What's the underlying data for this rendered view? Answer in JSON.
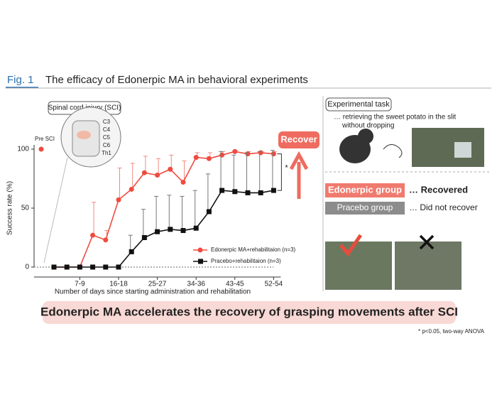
{
  "figure": {
    "label": "Fig. 1",
    "title": "The efficacy of Edonerpic MA in behavioral experiments",
    "sci_label": "Spinal cord injury (SCI)",
    "vertebrae": [
      "C3",
      "C4",
      "C5",
      "C6",
      "Th1"
    ],
    "recover": "Recover",
    "task_title": "Experimental task",
    "task_text": [
      "… retrieving the sweet potato in the slit",
      "without dropping"
    ],
    "edonerpic_group": "Edonerpic group",
    "edonerpic_result": "… Recovered",
    "placebo_group": "Pracebo group",
    "placebo_result": "… Did not recover",
    "banner": "Edonerpic MA accelerates the recovery of grasping movements after SCI",
    "footnote": "* p<0.05, two-way ANOVA"
  },
  "chart_data": {
    "type": "line",
    "y_label": "Success rate (%)",
    "x_label": "Number of days since starting administration and rehabilitation",
    "pre_label": "Pre SCI",
    "pre_value": 100,
    "significance": "*",
    "categories": [
      null,
      null,
      "7-9",
      null,
      null,
      "16-18",
      null,
      null,
      "25-27",
      null,
      null,
      "34-36",
      null,
      null,
      "43-45",
      null,
      null,
      "52-54"
    ],
    "series": [
      {
        "name": "Edonerpic MA+rehabilitaion (n=3)",
        "color": "#ef4b3f",
        "marker": "circle",
        "values": [
          0,
          0,
          0,
          27,
          23,
          57,
          66,
          80,
          78,
          83,
          72,
          93,
          92,
          95,
          98,
          96,
          97,
          96
        ],
        "errors": [
          null,
          null,
          null,
          28,
          8,
          27,
          22,
          14,
          14,
          12,
          18,
          4,
          5,
          3,
          1,
          2,
          1,
          2
        ]
      },
      {
        "name": "Pracebo+rehabilitaion (n=3)",
        "color": "#111111",
        "marker": "square",
        "values": [
          0,
          0,
          0,
          0,
          0,
          0,
          13,
          25,
          30,
          32,
          31,
          33,
          47,
          65,
          64,
          63,
          63,
          65
        ],
        "errors": [
          null,
          null,
          null,
          null,
          null,
          null,
          14,
          24,
          30,
          29,
          29,
          32,
          32,
          33,
          31,
          34,
          35,
          34
        ]
      }
    ],
    "ylim": [
      0,
      100
    ],
    "yticks": [
      0,
      50,
      100
    ]
  }
}
